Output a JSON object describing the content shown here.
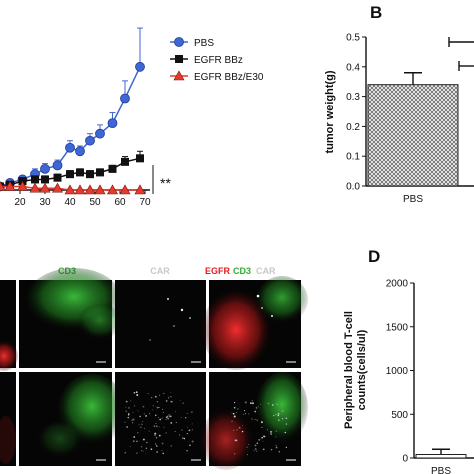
{
  "panel_labels": {
    "b": "B",
    "d": "D"
  },
  "micro_channels": {
    "cd3": "CD3",
    "car": "CAR",
    "merge": [
      "EGFR",
      "CD3",
      "CAR"
    ]
  },
  "colors": {
    "pbs": "#3f67d4",
    "bbz": "#111111",
    "e30": "#e53b2c",
    "cd3_green": "#2fae2f",
    "egfr_red": "#e02020",
    "car_grey": "#c8c8c8"
  },
  "chart_data": [
    {
      "id": "growth",
      "type": "line",
      "xlabel": "",
      "ylabel": "",
      "xlim": [
        12,
        72
      ],
      "ylim": [
        0,
        100
      ],
      "xticks": [
        20,
        30,
        40,
        50,
        60,
        70
      ],
      "significance": "**",
      "series": [
        {
          "name": "PBS",
          "marker": "circle",
          "x": [
            12,
            16,
            21,
            26,
            30,
            35,
            40,
            44,
            48,
            52,
            57,
            62,
            68
          ],
          "y": [
            2,
            4,
            6,
            9,
            12,
            14,
            24,
            22,
            28,
            32,
            38,
            52,
            70
          ],
          "err": [
            1,
            2,
            2,
            3,
            3,
            3,
            4,
            3,
            4,
            5,
            6,
            10,
            22
          ]
        },
        {
          "name": "EGFR BBz",
          "marker": "square",
          "x": [
            12,
            16,
            21,
            26,
            30,
            35,
            40,
            44,
            48,
            52,
            57,
            62,
            68
          ],
          "y": [
            2,
            3,
            5,
            6,
            6,
            7,
            9,
            10,
            9,
            10,
            12,
            16,
            18
          ],
          "err": [
            1,
            1,
            2,
            2,
            2,
            2,
            2,
            2,
            2,
            2,
            2,
            3,
            4
          ]
        },
        {
          "name": "EGFR BBz/E30",
          "marker": "triangle",
          "x": [
            12,
            16,
            21,
            26,
            30,
            35,
            40,
            44,
            48,
            52,
            57,
            62,
            68
          ],
          "y": [
            2,
            2,
            2,
            1,
            1,
            1,
            0,
            0,
            0,
            0,
            0,
            0,
            0
          ],
          "err": [
            0.5,
            0.5,
            0.5,
            0.5,
            0.5,
            0.5,
            0.5,
            0.5,
            0.5,
            0.5,
            0.5,
            0.5,
            0.5
          ]
        }
      ]
    },
    {
      "id": "tumor-weight",
      "type": "bar",
      "categories": [
        "PBS"
      ],
      "values": [
        0.34
      ],
      "err": [
        0.04
      ],
      "ylabel": "tumor weight(g)",
      "ylim": [
        0,
        0.5
      ],
      "yticks": [
        0.0,
        0.1,
        0.2,
        0.3,
        0.4,
        0.5
      ],
      "ytick_labels": [
        "0.0",
        "0.1",
        "0.2",
        "0.3",
        "0.4",
        "0.5"
      ]
    },
    {
      "id": "tcell-counts",
      "type": "bar",
      "categories": [
        "PBS"
      ],
      "values": [
        40
      ],
      "err": [
        60
      ],
      "ylabel": "Peripheral blood T-cell counts(cells/ul)",
      "ylim": [
        0,
        2000
      ],
      "yticks": [
        0,
        500,
        1000,
        1500,
        2000
      ],
      "ytick_labels": [
        "0",
        "500",
        "1000",
        "1500",
        "2000"
      ]
    }
  ]
}
